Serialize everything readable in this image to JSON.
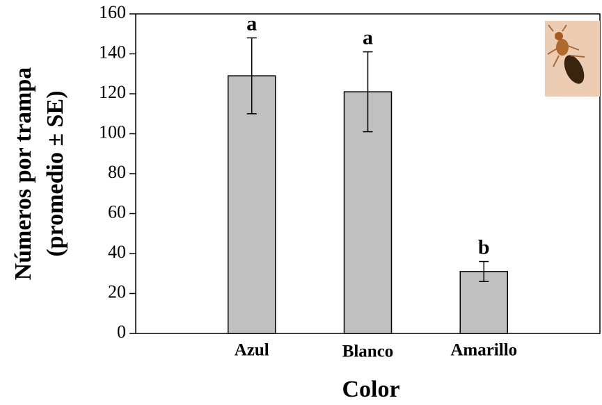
{
  "chart_data": {
    "type": "bar",
    "categories": [
      "Azul",
      "Blanco",
      "Amarillo"
    ],
    "values": [
      129,
      121,
      31
    ],
    "errors": [
      19,
      20,
      5
    ],
    "letters": [
      "a",
      "a",
      "b"
    ],
    "color": "#c0c0c0",
    "ylim": [
      0,
      160
    ],
    "yticks": [
      0,
      20,
      40,
      60,
      80,
      100,
      120,
      140,
      160
    ],
    "y_label_lines": [
      "Números por trampa",
      "(promedio ± SE)"
    ],
    "x_label": "Color"
  }
}
